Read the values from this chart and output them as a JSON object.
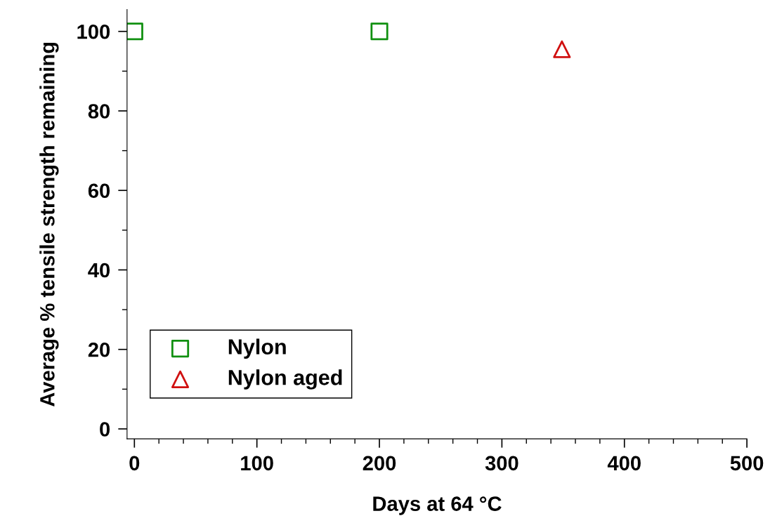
{
  "chart_data": {
    "type": "scatter",
    "xlabel": "Days at 64 °C",
    "ylabel": "Average % tensile strength remaining",
    "series": [
      {
        "name": "Nylon",
        "color": "#109010",
        "marker": "square",
        "x": [
          0,
          200
        ],
        "values": [
          100,
          100
        ]
      },
      {
        "name": "Nylon aged",
        "color": "#d01010",
        "marker": "triangle",
        "x": [
          349
        ],
        "values": [
          95.5
        ]
      }
    ],
    "xlim": [
      -6,
      500
    ],
    "ylim": [
      -2.5,
      105.5
    ],
    "xticks": [
      0,
      100,
      200,
      300,
      400,
      500
    ],
    "yticks": [
      0,
      20,
      40,
      60,
      80,
      100
    ],
    "grid": false,
    "legend": "bottom left"
  }
}
